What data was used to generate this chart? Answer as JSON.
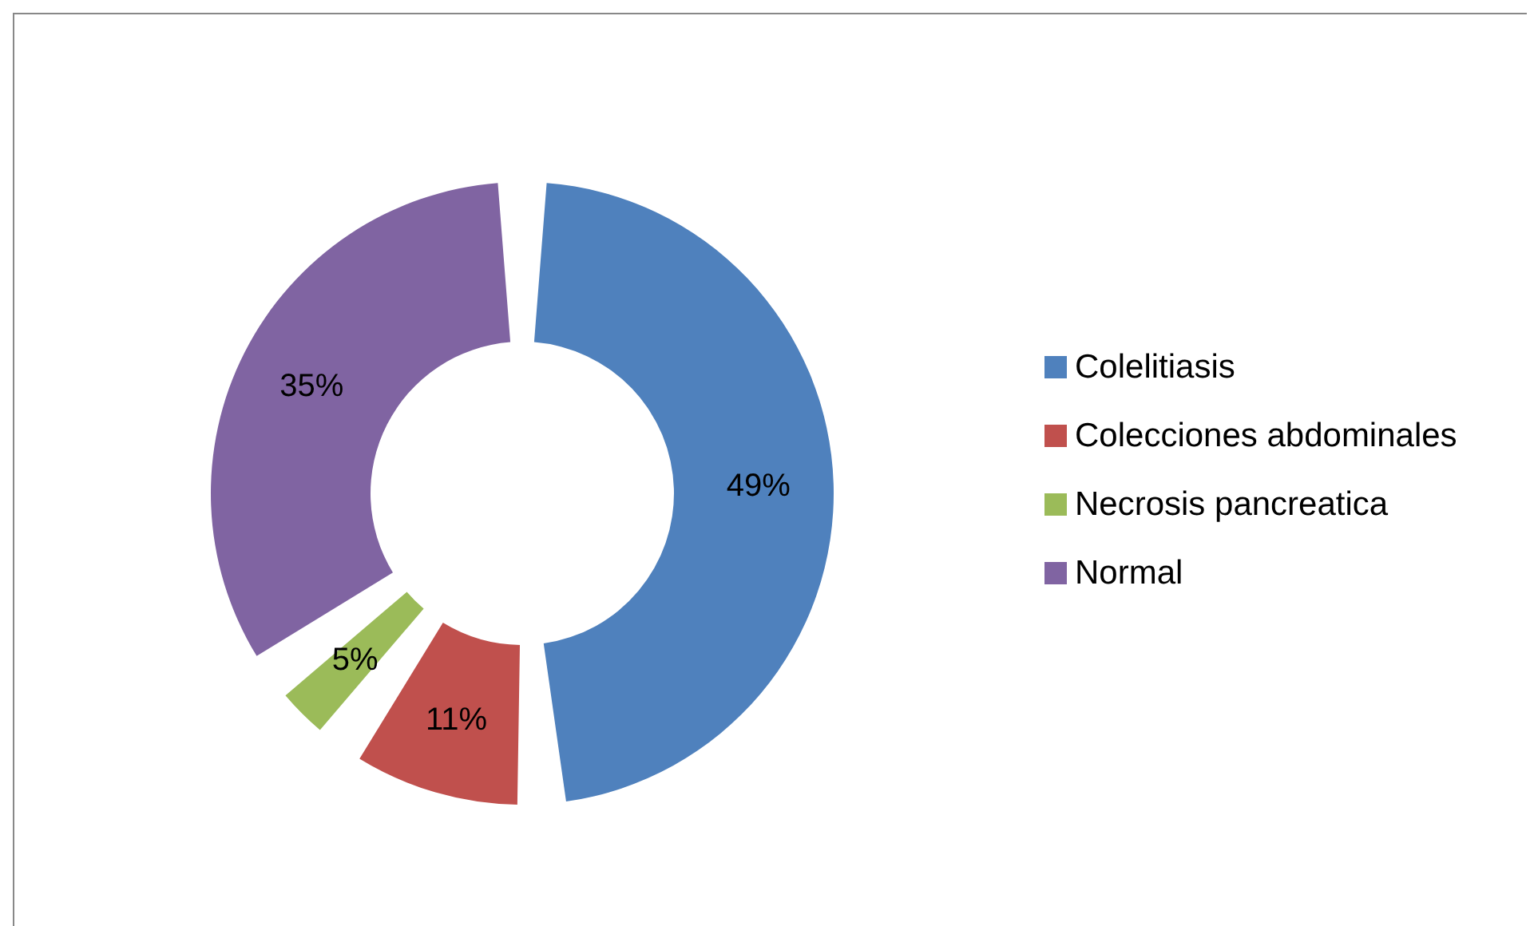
{
  "chart_data": {
    "type": "donut",
    "categories": [
      "Colelitiasis",
      "Colecciones abdominales",
      "Necrosis pancreatica",
      "Normal"
    ],
    "values": [
      49,
      11,
      5,
      35
    ],
    "colors": [
      "#4f81bd",
      "#c0504d",
      "#9bbb59",
      "#8064a2"
    ],
    "value_labels": [
      "49%",
      "11%",
      "5%",
      "35%"
    ],
    "legend": "right"
  }
}
